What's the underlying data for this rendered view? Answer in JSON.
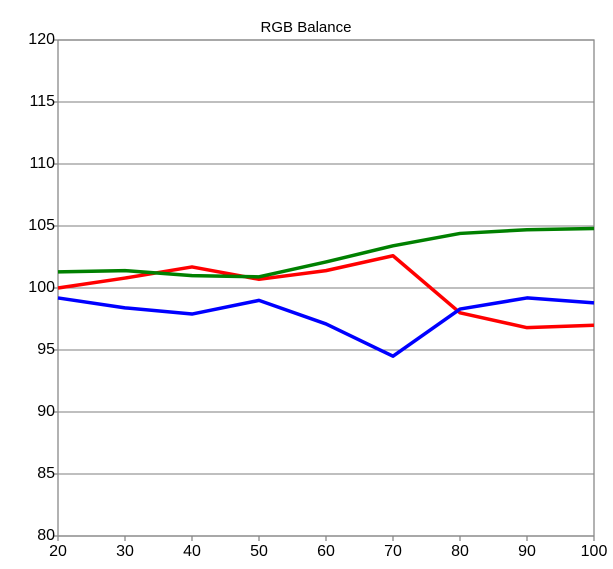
{
  "chart_data": {
    "type": "line",
    "title": "RGB Balance",
    "x": [
      20,
      30,
      40,
      50,
      60,
      70,
      80,
      90,
      100
    ],
    "series": [
      {
        "color": "#ff0000",
        "values": [
          100.0,
          100.8,
          101.7,
          100.7,
          101.4,
          102.6,
          98.0,
          96.8,
          97.0
        ]
      },
      {
        "color": "#008000",
        "values": [
          101.3,
          101.4,
          101.0,
          100.9,
          102.1,
          103.4,
          104.4,
          104.7,
          104.8
        ]
      },
      {
        "color": "#0000ff",
        "values": [
          99.2,
          98.4,
          97.9,
          99.0,
          97.1,
          94.5,
          98.3,
          99.2,
          98.8
        ]
      }
    ],
    "xlim": [
      20,
      100
    ],
    "xticks": [
      20,
      30,
      40,
      50,
      60,
      70,
      80,
      90,
      100
    ],
    "ylim": [
      80,
      120
    ],
    "yticks": [
      80,
      85,
      90,
      95,
      100,
      105,
      110,
      115,
      120
    ],
    "grid": true
  }
}
